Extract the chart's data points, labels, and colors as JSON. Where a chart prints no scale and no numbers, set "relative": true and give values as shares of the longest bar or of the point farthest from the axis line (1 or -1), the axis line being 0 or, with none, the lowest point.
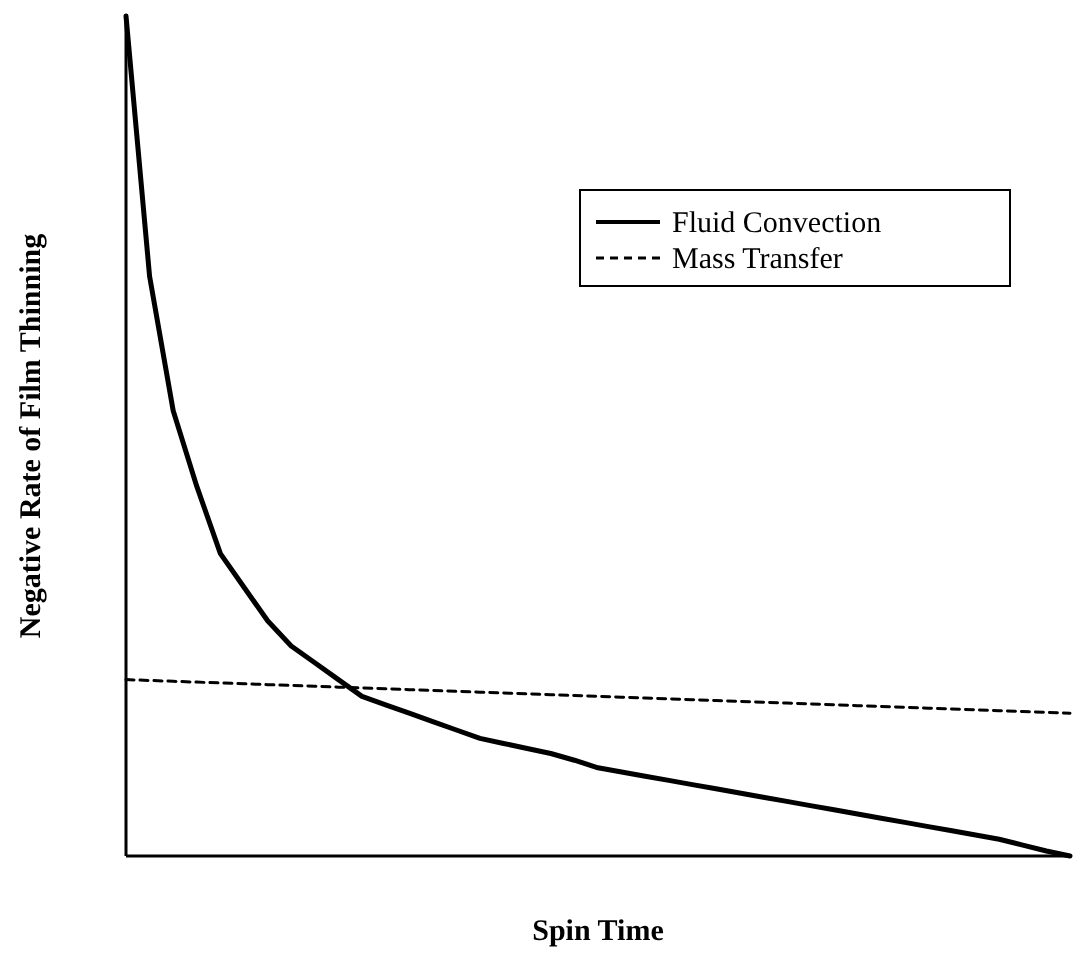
{
  "chart_data": {
    "type": "line",
    "relative": true,
    "xlabel": "Spin Time",
    "ylabel": "Negative Rate of Film Thinning",
    "legend": "top right",
    "marker": "none",
    "categories": [
      null,
      null,
      null,
      null,
      null,
      null,
      null,
      null,
      null,
      null,
      null,
      null,
      null,
      null,
      null,
      null,
      null,
      null,
      null,
      null,
      null,
      null,
      null,
      null,
      null,
      null,
      null,
      null,
      null,
      null,
      null,
      null,
      null,
      null,
      null,
      null,
      null,
      null,
      null,
      null,
      null
    ],
    "series": [
      {
        "name": "Fluid Convection",
        "color": "#000000",
        "line_style": "solid",
        "values": [
          1.0,
          0.69,
          0.53,
          0.44,
          0.36,
          0.32,
          0.28,
          0.25,
          0.23,
          0.21,
          0.19,
          0.18,
          0.17,
          0.16,
          0.15,
          0.14,
          0.134,
          0.128,
          0.122,
          0.114,
          0.105,
          0.1,
          0.095,
          0.09,
          0.085,
          0.08,
          0.075,
          0.07,
          0.065,
          0.06,
          0.055,
          0.05,
          0.045,
          0.04,
          0.035,
          0.03,
          0.025,
          0.02,
          0.013,
          0.006,
          0.0
        ]
      },
      {
        "name": "Mass Transfer",
        "color": "#000000",
        "line_style": "dashed",
        "values": [
          0.21,
          0.209,
          0.208,
          0.207,
          0.206,
          0.205,
          0.204,
          0.203,
          0.202,
          0.201,
          0.2,
          0.199,
          0.198,
          0.197,
          0.196,
          0.195,
          0.194,
          0.193,
          0.192,
          0.191,
          0.19,
          0.189,
          0.188,
          0.187,
          0.186,
          0.185,
          0.184,
          0.183,
          0.182,
          0.181,
          0.18,
          0.179,
          0.178,
          0.177,
          0.176,
          0.175,
          0.174,
          0.173,
          0.172,
          0.171,
          0.17
        ]
      }
    ]
  }
}
